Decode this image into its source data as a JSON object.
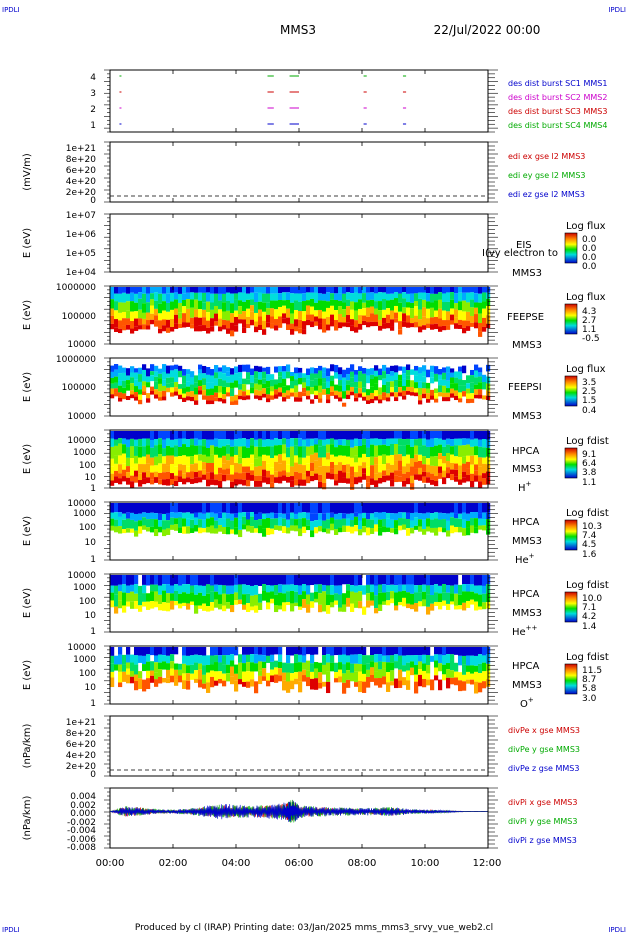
{
  "page": {
    "corner_label": "IPDLI",
    "title": "MMS3",
    "date": "22/Jul/2022 00:00",
    "footer": "Produced by cl (IRAP)   Printing date: 03/Jan/2025   mms_mms3_srvy_vue_web2.cl"
  },
  "x_axis": {
    "range_hours": [
      0,
      12
    ],
    "tick_labels": [
      "00:00",
      "02:00",
      "04:00",
      "06:00",
      "08:00",
      "10:00",
      "12:00"
    ]
  },
  "panels": [
    {
      "id": "burst",
      "tick_labels": [
        "4",
        "3",
        "2",
        "1"
      ],
      "ylim": [
        0.5,
        4.5
      ],
      "legend": [
        {
          "text": "des dist burst SC1 MMS1",
          "color": "#0000cc"
        },
        {
          "text": "des dist burst SC2 MMS2",
          "color": "#cc00cc"
        },
        {
          "text": "des dist burst SC3 MMS3",
          "color": "#cc0000"
        },
        {
          "text": "des dist burst SC4 MMS4",
          "color": "#00aa00"
        }
      ]
    },
    {
      "id": "edi",
      "ylabel": "(mV/m)",
      "tick_labels": [
        "1e+21",
        "8e+20",
        "6e+20",
        "4e+20",
        "2e+20",
        "0"
      ],
      "legend": [
        {
          "text": "edi ex gse l2 MMS3",
          "color": "#cc0000"
        },
        {
          "text": "edi ey gse l2 MMS3",
          "color": "#00aa00"
        },
        {
          "text": "edi ez gse l2 MMS3",
          "color": "#0000cc"
        }
      ]
    },
    {
      "id": "eis",
      "ylabel": "E (eV)",
      "tick_labels": [
        "1e+07",
        "1e+06",
        "1e+05",
        "1e+04"
      ],
      "instrument": [
        "EIS",
        "MMS3"
      ],
      "overlay_text": "I(vy electron to",
      "colorbar": {
        "title": "Log flux",
        "values": [
          "0.0",
          "0.0",
          "0.0",
          "0.0"
        ]
      }
    },
    {
      "id": "feepse",
      "ylabel": "E (eV)",
      "tick_labels": [
        "1000000",
        "100000",
        "10000"
      ],
      "instrument": [
        "FEEPSE",
        "MMS3"
      ],
      "colorbar": {
        "title": "Log flux",
        "values": [
          "4.3",
          "2.7",
          "1.1",
          "-0.5"
        ]
      }
    },
    {
      "id": "feepsi",
      "ylabel": "E (eV)",
      "tick_labels": [
        "1000000",
        "100000",
        "10000"
      ],
      "instrument": [
        "FEEPSI",
        "MMS3"
      ],
      "colorbar": {
        "title": "Log flux",
        "values": [
          "3.5",
          "2.5",
          "1.5",
          "0.4"
        ]
      }
    },
    {
      "id": "hpca_h",
      "ylabel": "E (eV)",
      "tick_labels": [
        "10000",
        "1000",
        "100",
        "10",
        "1"
      ],
      "instrument": [
        "HPCA",
        "MMS3"
      ],
      "species": "H",
      "charge": "+",
      "colorbar": {
        "title": "Log fdist",
        "values": [
          "9.1",
          "6.4",
          "3.8",
          "1.1"
        ]
      }
    },
    {
      "id": "hpca_he",
      "ylabel": "E (eV)",
      "tick_labels": [
        "10000",
        "1000",
        "100",
        "10",
        "1"
      ],
      "instrument": [
        "HPCA",
        "MMS3"
      ],
      "species": "He",
      "charge": "+",
      "colorbar": {
        "title": "Log fdist",
        "values": [
          "10.3",
          "7.4",
          "4.5",
          "1.6"
        ]
      }
    },
    {
      "id": "hpca_hepp",
      "ylabel": "E (eV)",
      "tick_labels": [
        "10000",
        "1000",
        "100",
        "10",
        "1"
      ],
      "instrument": [
        "HPCA",
        "MMS3"
      ],
      "species": "He",
      "charge": "++",
      "colorbar": {
        "title": "Log fdist",
        "values": [
          "10.0",
          "7.1",
          "4.2",
          "1.4"
        ]
      }
    },
    {
      "id": "hpca_o",
      "ylabel": "E (eV)",
      "tick_labels": [
        "10000",
        "1000",
        "100",
        "10",
        "1"
      ],
      "instrument": [
        "HPCA",
        "MMS3"
      ],
      "species": "O",
      "charge": "+",
      "colorbar": {
        "title": "Log fdist",
        "values": [
          "11.5",
          "8.7",
          "5.8",
          "3.0"
        ]
      }
    },
    {
      "id": "divpe",
      "ylabel": "(nPa/km)",
      "tick_labels": [
        "1e+21",
        "8e+20",
        "6e+20",
        "4e+20",
        "2e+20",
        "0"
      ],
      "legend": [
        {
          "text": "divPe x gse MMS3",
          "color": "#cc0000"
        },
        {
          "text": "divPe y gse MMS3",
          "color": "#00aa00"
        },
        {
          "text": "divPe z gse MMS3",
          "color": "#0000cc"
        }
      ]
    },
    {
      "id": "divpi",
      "ylabel": "(nPa/km)",
      "tick_labels": [
        "0.004",
        "0.002",
        "0.000",
        "-0.002",
        "-0.004",
        "-0.006",
        "-0.008"
      ],
      "ylim": [
        -0.0085,
        0.0055
      ],
      "legend": [
        {
          "text": "divPi x gse MMS3",
          "color": "#cc0000"
        },
        {
          "text": "divPi y gse MMS3",
          "color": "#00aa00"
        },
        {
          "text": "divPi z gse MMS3",
          "color": "#0000cc"
        }
      ]
    }
  ],
  "chart_data": {
    "type": "line",
    "burst_intervals": [
      {
        "start": 0.3,
        "end": 0.35
      },
      {
        "start": 5.0,
        "end": 5.2
      },
      {
        "start": 5.7,
        "end": 6.0
      },
      {
        "start": 8.05,
        "end": 8.15
      },
      {
        "start": 9.3,
        "end": 9.4
      }
    ],
    "divPi": {
      "x_hours": [
        0,
        0.5,
        1,
        1.5,
        2,
        2.5,
        3,
        3.5,
        4,
        4.5,
        5,
        5.5,
        5.8,
        6,
        6.5,
        7,
        7.5,
        8,
        8.5,
        9,
        9.5,
        10,
        10.5,
        11,
        11.5,
        12
      ],
      "series": [
        {
          "name": "divPi x gse MMS3",
          "color": "#cc0000",
          "values": [
            0.0,
            0.001,
            0.0008,
            0.0004,
            0.0003,
            0.0005,
            0.0009,
            0.0013,
            0.0012,
            0.001,
            0.0012,
            0.0015,
            0.0022,
            0.0012,
            0.0009,
            0.0008,
            0.0007,
            0.0006,
            0.0007,
            0.0008,
            0.0004,
            0.0003,
            0.0002,
            0.0001,
            0.0,
            0.0
          ]
        },
        {
          "name": "divPi y gse MMS3",
          "color": "#00aa00",
          "values": [
            0.0,
            0.0012,
            0.0008,
            0.0005,
            0.0004,
            0.0006,
            0.001,
            0.0014,
            0.0013,
            0.0011,
            0.0013,
            0.0016,
            0.0024,
            0.0013,
            0.001,
            0.0009,
            0.0008,
            0.0007,
            0.0008,
            0.0009,
            0.0005,
            0.0004,
            0.0003,
            0.0001,
            0.0,
            0.0
          ]
        },
        {
          "name": "divPi z gse MMS3",
          "color": "#0000cc",
          "values": [
            0.0,
            0.001,
            0.0007,
            0.0004,
            0.0004,
            0.0006,
            0.0011,
            0.0015,
            0.0014,
            0.0011,
            0.0014,
            0.0017,
            0.0025,
            0.0013,
            0.001,
            0.0009,
            0.0008,
            0.0007,
            0.0008,
            0.0009,
            0.0005,
            0.0004,
            0.0003,
            0.0001,
            0.0,
            0.0
          ]
        }
      ]
    }
  }
}
